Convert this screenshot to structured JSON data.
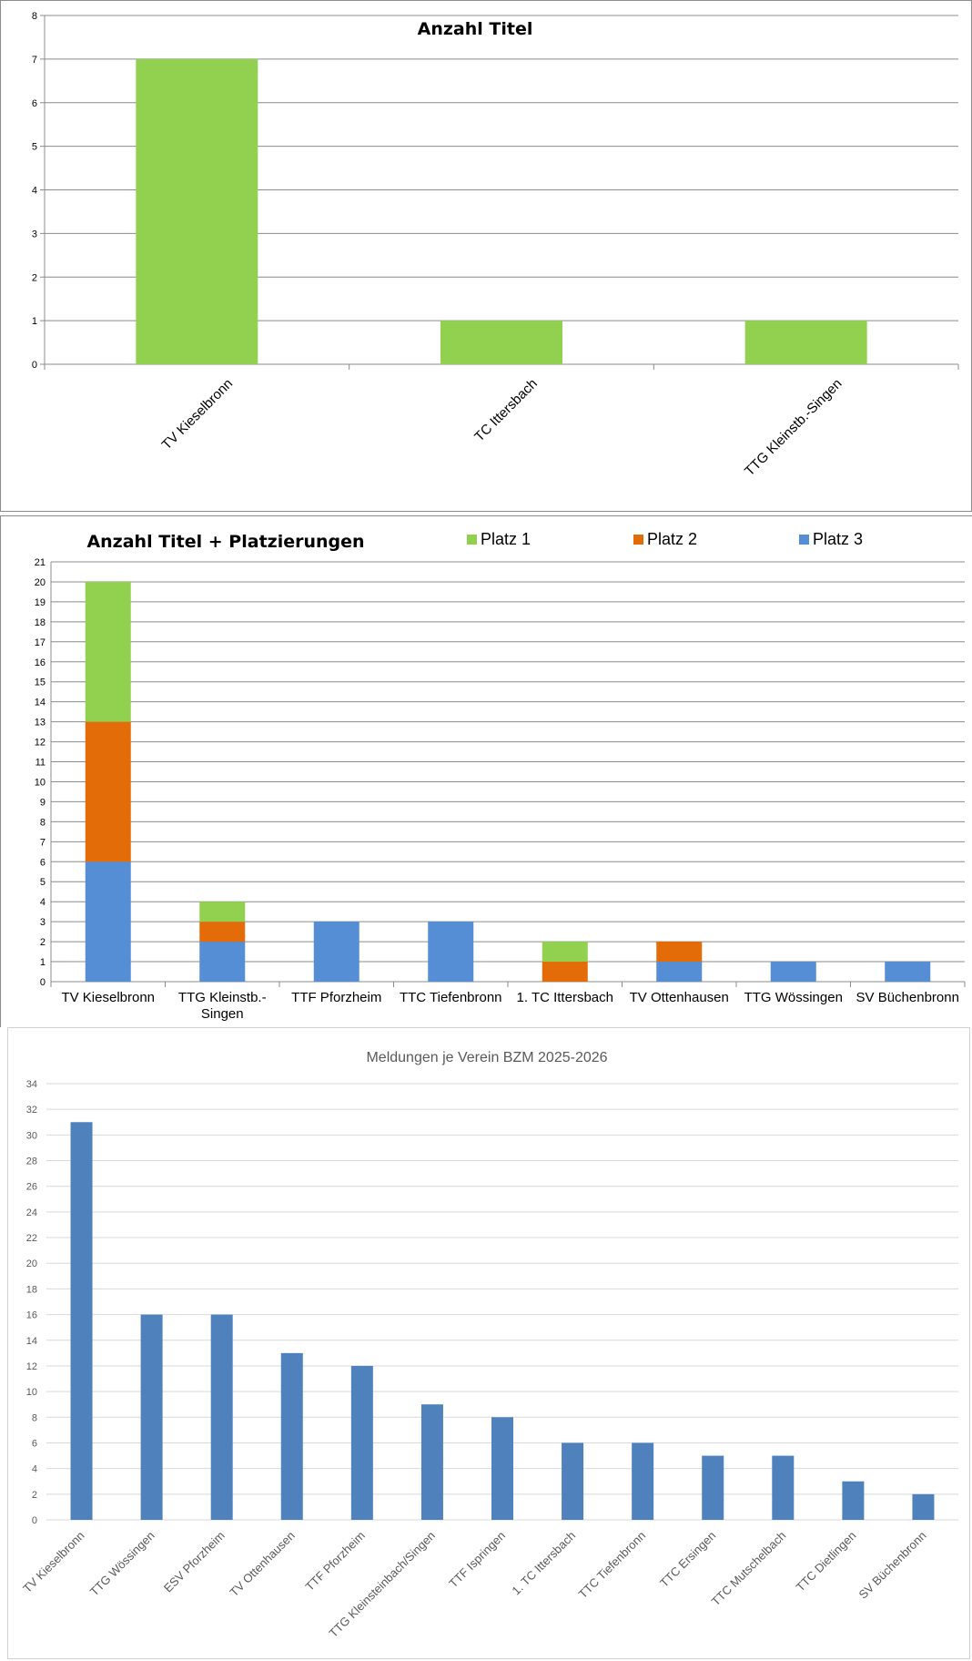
{
  "chart_data": [
    {
      "type": "bar",
      "title": "Anzahl Titel",
      "categories": [
        "TV Kieselbronn",
        "TC Ittersbach",
        "TTG Kleinstb.-Singen"
      ],
      "values": [
        7,
        1,
        1
      ],
      "ylim": [
        0,
        8
      ],
      "yticks": [
        0,
        1,
        2,
        3,
        4,
        5,
        6,
        7,
        8
      ],
      "grid": true,
      "color": "#92d050"
    },
    {
      "type": "bar",
      "stacked": true,
      "title": "Anzahl Titel + Platzierungen",
      "categories": [
        "TV Kieselbronn",
        "TTG Kleinstb.-Singen",
        "TTF Pforzheim",
        "TTC Tiefenbronn",
        "1. TC Ittersbach",
        "TV Ottenhausen",
        "TTG Wössingen",
        "SV Büchenbronn"
      ],
      "series": [
        {
          "name": "Platz 3",
          "color": "#558ed5",
          "values": [
            6,
            2,
            3,
            3,
            0,
            1,
            1,
            1
          ]
        },
        {
          "name": "Platz 2",
          "color": "#e36c09",
          "values": [
            7,
            1,
            0,
            0,
            1,
            1,
            0,
            0
          ]
        },
        {
          "name": "Platz 1",
          "color": "#92d050",
          "values": [
            7,
            1,
            0,
            0,
            1,
            0,
            0,
            0
          ]
        }
      ],
      "legend_order": [
        "Platz 1",
        "Platz 2",
        "Platz 3"
      ],
      "legend_position": "top",
      "ylim": [
        0,
        21
      ],
      "grid": true
    },
    {
      "type": "bar",
      "title": "Meldungen je Verein BZM 2025-2026",
      "categories": [
        "TV Kieselbronn",
        "TTG Wössingen",
        "ESV Pforzheim",
        "TV Ottenhausen",
        "TTF Pforzheim",
        "TTG Kleinsteinbach/Singen",
        "TTF Ispringen",
        "1. TC Ittersbach",
        "TTC Tiefenbronn",
        "TTC Ersingen",
        "TTC Mutschelbach",
        "TTC Dietlingen",
        "SV Büchenbronn"
      ],
      "values": [
        31,
        16,
        16,
        13,
        12,
        9,
        8,
        6,
        6,
        5,
        5,
        3,
        2
      ],
      "ylim": [
        0,
        34
      ],
      "ytick_step": 2,
      "grid": true,
      "color": "#4f81bd"
    }
  ]
}
